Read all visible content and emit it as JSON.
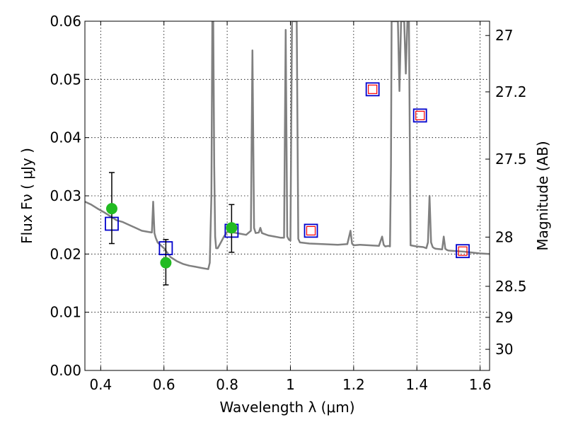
{
  "chart_data": {
    "type": "line",
    "xlabel": "Wavelength  λ (μm)",
    "ylabel": "Flux  Fν  ( μJy )",
    "ylabel_right": "Magnitude (AB)",
    "xlim": [
      0.35,
      1.63
    ],
    "ylim": [
      0.0,
      0.06
    ],
    "grid": true,
    "x_ticks": [
      0.4,
      0.6,
      0.8,
      1.0,
      1.2,
      1.4,
      1.6
    ],
    "x_tick_labels": [
      "0.4",
      "0.6",
      "0.8",
      "1",
      "1.2",
      "1.4",
      "1.6"
    ],
    "y_ticks": [
      0.0,
      0.01,
      0.02,
      0.03,
      0.04,
      0.05,
      0.06
    ],
    "y_tick_labels": [
      "0.00",
      "0.01",
      "0.02",
      "0.03",
      "0.04",
      "0.05",
      "0.06"
    ],
    "right_ticks": [
      {
        "mag": 27,
        "label": "27"
      },
      {
        "mag": 27.2,
        "label": "27.2"
      },
      {
        "mag": 27.5,
        "label": "27.5"
      },
      {
        "mag": 28,
        "label": "28"
      },
      {
        "mag": 28.5,
        "label": "28.5"
      },
      {
        "mag": 29,
        "label": "29"
      },
      {
        "mag": 30,
        "label": "30"
      }
    ],
    "series": [
      {
        "kind": "line",
        "color": "#808080",
        "x": [
          0.35,
          0.37,
          0.39,
          0.41,
          0.43,
          0.45,
          0.47,
          0.49,
          0.51,
          0.53,
          0.55,
          0.562,
          0.566,
          0.57,
          0.574,
          0.58,
          0.6,
          0.62,
          0.64,
          0.66,
          0.68,
          0.7,
          0.72,
          0.74,
          0.745,
          0.75,
          0.753,
          0.756,
          0.759,
          0.762,
          0.765,
          0.77,
          0.78,
          0.79,
          0.8,
          0.82,
          0.84,
          0.86,
          0.875,
          0.88,
          0.885,
          0.89,
          0.9,
          0.905,
          0.91,
          0.93,
          0.95,
          0.97,
          0.98,
          0.985,
          0.99,
          0.995,
          1.0,
          1.005,
          1.01,
          1.015,
          1.02,
          1.025,
          1.03,
          1.06,
          1.1,
          1.15,
          1.18,
          1.19,
          1.195,
          1.2,
          1.22,
          1.25,
          1.28,
          1.29,
          1.295,
          1.3,
          1.31,
          1.315,
          1.318,
          1.32,
          1.33,
          1.34,
          1.345,
          1.35,
          1.355,
          1.36,
          1.365,
          1.37,
          1.375,
          1.38,
          1.4,
          1.42,
          1.43,
          1.435,
          1.44,
          1.445,
          1.45,
          1.455,
          1.46,
          1.48,
          1.485,
          1.49,
          1.495,
          1.5,
          1.55,
          1.6,
          1.63
        ],
        "y": [
          0.029,
          0.0285,
          0.0278,
          0.0272,
          0.0265,
          0.0258,
          0.0255,
          0.025,
          0.0245,
          0.024,
          0.0238,
          0.0237,
          0.029,
          0.0236,
          0.0228,
          0.022,
          0.021,
          0.0195,
          0.0188,
          0.0183,
          0.018,
          0.0178,
          0.0176,
          0.0174,
          0.0185,
          0.03,
          0.06,
          0.06,
          0.035,
          0.023,
          0.021,
          0.021,
          0.022,
          0.023,
          0.0238,
          0.0237,
          0.0235,
          0.0233,
          0.024,
          0.055,
          0.0245,
          0.0236,
          0.0237,
          0.0245,
          0.0236,
          0.0232,
          0.023,
          0.0228,
          0.0228,
          0.0585,
          0.023,
          0.0225,
          0.0223,
          0.06,
          0.06,
          0.06,
          0.06,
          0.0226,
          0.022,
          0.0218,
          0.0217,
          0.0216,
          0.0217,
          0.024,
          0.0218,
          0.0215,
          0.0216,
          0.0215,
          0.0214,
          0.023,
          0.0216,
          0.0213,
          0.0214,
          0.0213,
          0.035,
          0.06,
          0.06,
          0.06,
          0.048,
          0.06,
          0.06,
          0.06,
          0.051,
          0.06,
          0.06,
          0.0215,
          0.0213,
          0.0212,
          0.021,
          0.022,
          0.03,
          0.022,
          0.0212,
          0.021,
          0.0209,
          0.0208,
          0.023,
          0.0209,
          0.0207,
          0.0206,
          0.0204,
          0.0201,
          0.02
        ]
      }
    ],
    "observed_points": [
      {
        "x": 0.435,
        "y": 0.0278,
        "yerr_low": 0.0218,
        "yerr_high": 0.034,
        "color": "#22bb22"
      },
      {
        "x": 0.606,
        "y": 0.0185,
        "yerr_low": 0.0147,
        "yerr_high": 0.0225,
        "color": "#22bb22"
      },
      {
        "x": 0.814,
        "y": 0.0245,
        "yerr_low": 0.0203,
        "yerr_high": 0.0285,
        "color": "#22bb22"
      }
    ],
    "model_bands": [
      {
        "x": 0.435,
        "y": 0.0252,
        "inner": false
      },
      {
        "x": 0.606,
        "y": 0.021,
        "inner": false
      },
      {
        "x": 0.814,
        "y": 0.024,
        "inner": false
      },
      {
        "x": 1.065,
        "y": 0.024,
        "inner": true
      },
      {
        "x": 1.26,
        "y": 0.0483,
        "inner": true
      },
      {
        "x": 1.41,
        "y": 0.0438,
        "inner": true
      },
      {
        "x": 1.545,
        "y": 0.0205,
        "inner": true
      }
    ],
    "colors": {
      "box_outer": "#0000cc",
      "box_inner": "#ff0000",
      "errorbar": "#000000",
      "grid": "#000000"
    }
  }
}
